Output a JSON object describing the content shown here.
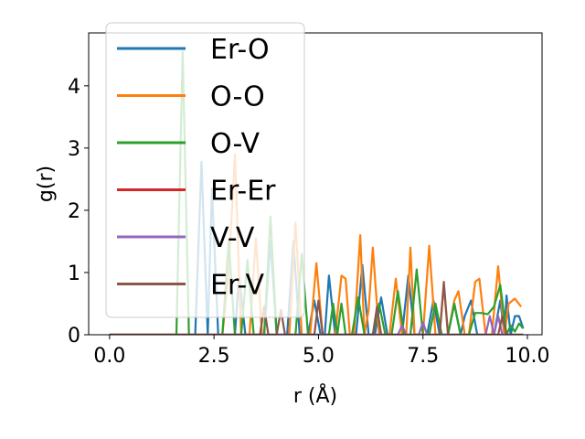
{
  "chart_data": {
    "type": "line",
    "title": "",
    "xlabel": "r (Å)",
    "ylabel": "g(r)",
    "xlim": [
      -0.5,
      10.35
    ],
    "ylim": [
      0,
      4.85
    ],
    "xticks": [
      0.0,
      2.5,
      5.0,
      7.5,
      10.0
    ],
    "xtick_labels": [
      "0.0",
      "2.5",
      "5.0",
      "7.5",
      "10.0"
    ],
    "yticks": [
      0,
      1,
      2,
      3,
      4
    ],
    "ytick_labels": [
      "0",
      "1",
      "2",
      "3",
      "4"
    ],
    "grid": false,
    "legend_position": "upper-left",
    "series": [
      {
        "name": "Er-O",
        "color": "#1f77b4",
        "points": [
          [
            0.0,
            0
          ],
          [
            2.05,
            0
          ],
          [
            2.2,
            2.78
          ],
          [
            2.35,
            0
          ],
          [
            2.45,
            2.35
          ],
          [
            2.6,
            0
          ],
          [
            3.0,
            0
          ],
          [
            3.1,
            0.95
          ],
          [
            3.25,
            0
          ],
          [
            3.7,
            0
          ],
          [
            3.85,
            1.5
          ],
          [
            4.0,
            0
          ],
          [
            4.25,
            0
          ],
          [
            4.4,
            1.5
          ],
          [
            4.55,
            0
          ],
          [
            4.75,
            0
          ],
          [
            4.9,
            0.55
          ],
          [
            5.05,
            0
          ],
          [
            5.15,
            0
          ],
          [
            5.25,
            0.95
          ],
          [
            5.4,
            0
          ],
          [
            5.9,
            0
          ],
          [
            6.05,
            1.12
          ],
          [
            6.2,
            0
          ],
          [
            6.35,
            0
          ],
          [
            6.5,
            0.6
          ],
          [
            6.65,
            0
          ],
          [
            7.0,
            0
          ],
          [
            7.15,
            0.95
          ],
          [
            7.3,
            0
          ],
          [
            7.6,
            0
          ],
          [
            7.75,
            0.55
          ],
          [
            7.9,
            0
          ],
          [
            8.1,
            0
          ],
          [
            8.25,
            0.5
          ],
          [
            8.4,
            0
          ],
          [
            8.5,
            0.3
          ],
          [
            8.65,
            0.55
          ],
          [
            8.8,
            0
          ],
          [
            9.2,
            0
          ],
          [
            9.35,
            0.55
          ],
          [
            9.45,
            0
          ],
          [
            9.5,
            0.63
          ],
          [
            9.6,
            0
          ],
          [
            9.7,
            0.3
          ],
          [
            9.8,
            0.3
          ],
          [
            9.9,
            0.1
          ]
        ]
      },
      {
        "name": "O-O",
        "color": "#ff7f0e",
        "points": [
          [
            0.0,
            0
          ],
          [
            2.7,
            0
          ],
          [
            2.85,
            1.0
          ],
          [
            3.0,
            2.9
          ],
          [
            3.15,
            0
          ],
          [
            3.35,
            0
          ],
          [
            3.5,
            1.55
          ],
          [
            3.65,
            0
          ],
          [
            4.3,
            0
          ],
          [
            4.45,
            1.8
          ],
          [
            4.6,
            0
          ],
          [
            4.8,
            0
          ],
          [
            4.95,
            1.15
          ],
          [
            5.1,
            0
          ],
          [
            5.4,
            0
          ],
          [
            5.55,
            0.95
          ],
          [
            5.65,
            0.9
          ],
          [
            5.75,
            0
          ],
          [
            5.85,
            0
          ],
          [
            6.0,
            1.6
          ],
          [
            6.1,
            0
          ],
          [
            6.2,
            0.4
          ],
          [
            6.3,
            1.4
          ],
          [
            6.45,
            0
          ],
          [
            6.7,
            0
          ],
          [
            6.85,
            0.9
          ],
          [
            7.0,
            0
          ],
          [
            7.1,
            0
          ],
          [
            7.2,
            1.4
          ],
          [
            7.3,
            0
          ],
          [
            7.5,
            0
          ],
          [
            7.65,
            1.43
          ],
          [
            7.8,
            0
          ],
          [
            7.9,
            0
          ],
          [
            8.0,
            0.8
          ],
          [
            8.1,
            0
          ],
          [
            8.25,
            0.55
          ],
          [
            8.35,
            0.7
          ],
          [
            8.5,
            0
          ],
          [
            8.6,
            0
          ],
          [
            8.75,
            0.85
          ],
          [
            8.85,
            0.9
          ],
          [
            9.0,
            0
          ],
          [
            9.15,
            0
          ],
          [
            9.3,
            1.1
          ],
          [
            9.45,
            0
          ],
          [
            9.55,
            0.5
          ],
          [
            9.7,
            0.58
          ],
          [
            9.85,
            0.45
          ]
        ]
      },
      {
        "name": "O-V",
        "color": "#2ca02c",
        "points": [
          [
            0.0,
            0
          ],
          [
            1.6,
            0
          ],
          [
            1.75,
            4.55
          ],
          [
            1.9,
            0
          ],
          [
            2.7,
            0
          ],
          [
            2.85,
            1.5
          ],
          [
            3.0,
            0
          ],
          [
            3.15,
            0
          ],
          [
            3.3,
            1.2
          ],
          [
            3.45,
            0
          ],
          [
            3.7,
            0
          ],
          [
            3.85,
            1.9
          ],
          [
            4.0,
            0
          ],
          [
            4.45,
            0
          ],
          [
            4.6,
            1.3
          ],
          [
            4.75,
            0
          ],
          [
            5.25,
            0
          ],
          [
            5.35,
            0.5
          ],
          [
            5.45,
            0
          ],
          [
            5.55,
            0.5
          ],
          [
            5.65,
            0
          ],
          [
            5.8,
            0
          ],
          [
            5.95,
            0.6
          ],
          [
            6.1,
            0
          ],
          [
            6.3,
            0
          ],
          [
            6.45,
            0.5
          ],
          [
            6.6,
            0
          ],
          [
            6.75,
            0
          ],
          [
            6.9,
            0.7
          ],
          [
            7.05,
            0
          ],
          [
            7.2,
            0
          ],
          [
            7.35,
            1.05
          ],
          [
            7.5,
            0
          ],
          [
            7.65,
            0
          ],
          [
            7.8,
            0.5
          ],
          [
            7.95,
            0
          ],
          [
            8.1,
            0
          ],
          [
            8.25,
            0.5
          ],
          [
            8.4,
            0
          ],
          [
            8.6,
            0
          ],
          [
            8.75,
            0.35
          ],
          [
            8.9,
            0.35
          ],
          [
            9.05,
            0.33
          ],
          [
            9.2,
            0.45
          ],
          [
            9.35,
            0.8
          ],
          [
            9.5,
            0
          ],
          [
            9.6,
            0.15
          ],
          [
            9.7,
            0.05
          ],
          [
            9.8,
            0.18
          ],
          [
            9.9,
            0.1
          ]
        ]
      },
      {
        "name": "Er-Er",
        "color": "#d62728",
        "points": [
          [
            0.0,
            0
          ],
          [
            9.9,
            0
          ]
        ]
      },
      {
        "name": "V-V",
        "color": "#9467bd",
        "points": [
          [
            0.0,
            0
          ],
          [
            6.9,
            0
          ],
          [
            7.0,
            0.15
          ],
          [
            7.1,
            0
          ],
          [
            7.4,
            0
          ],
          [
            7.5,
            0.2
          ],
          [
            7.6,
            0
          ],
          [
            9.0,
            0
          ],
          [
            9.1,
            0.3
          ],
          [
            9.2,
            0
          ],
          [
            9.3,
            0.3
          ],
          [
            9.4,
            0
          ],
          [
            9.9,
            0
          ]
        ]
      },
      {
        "name": "Er-V",
        "color": "#8c564b",
        "points": [
          [
            0.0,
            0
          ],
          [
            3.6,
            0
          ],
          [
            3.7,
            0.45
          ],
          [
            3.8,
            0
          ],
          [
            4.0,
            0
          ],
          [
            4.1,
            0.4
          ],
          [
            4.2,
            0
          ],
          [
            4.9,
            0
          ],
          [
            5.0,
            0.55
          ],
          [
            5.1,
            0
          ],
          [
            6.3,
            0
          ],
          [
            6.4,
            0.45
          ],
          [
            6.5,
            0
          ],
          [
            7.9,
            0
          ],
          [
            8.0,
            0.85
          ],
          [
            8.1,
            0
          ],
          [
            9.3,
            0
          ],
          [
            9.4,
            0.3
          ],
          [
            9.5,
            0
          ],
          [
            9.9,
            0
          ]
        ]
      }
    ]
  }
}
